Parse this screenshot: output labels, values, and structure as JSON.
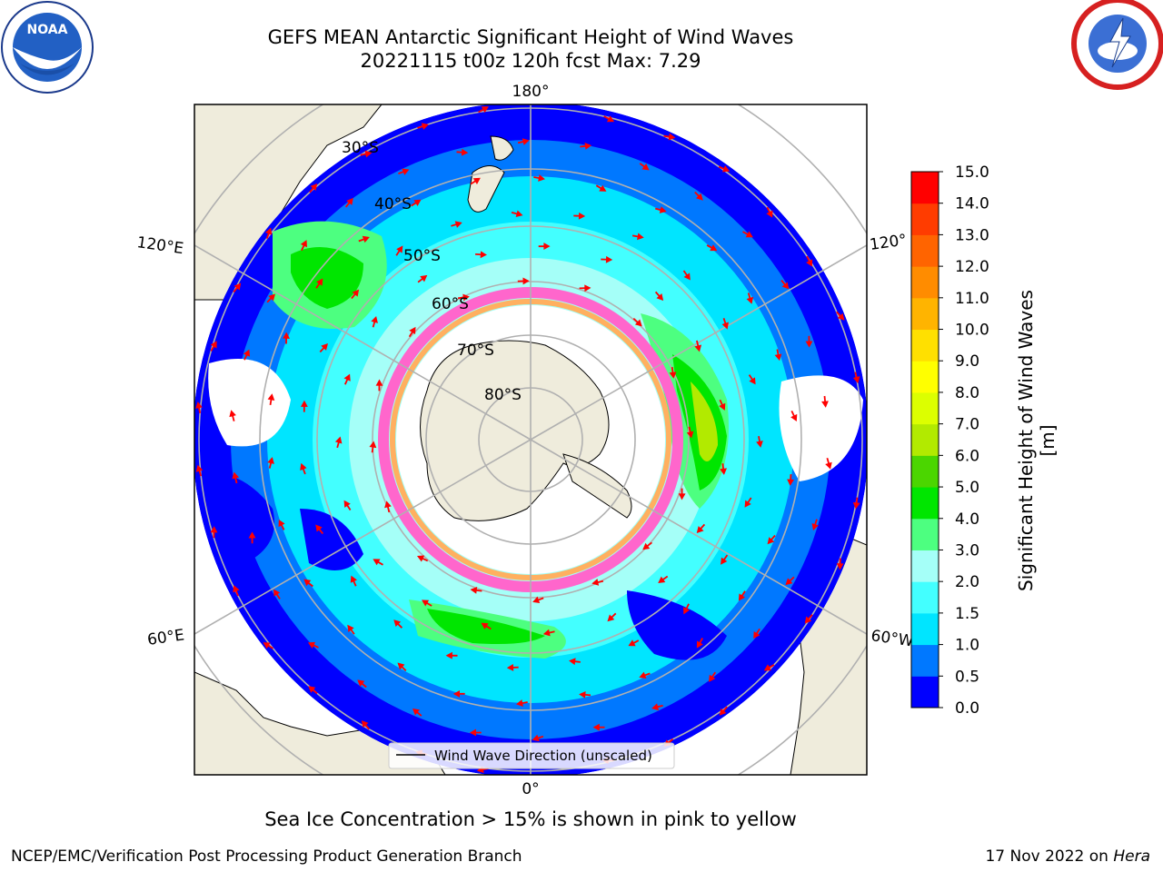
{
  "header": {
    "title_line1": "GEFS MEAN Antarctic Significant Height of Wind Waves",
    "title_line2": "20221115 t00z 120h fcst   Max: 7.29"
  },
  "logos": {
    "noaa": {
      "icon": "noaa-logo",
      "text": "NOAA"
    },
    "nws": {
      "icon": "nws-logo"
    }
  },
  "map": {
    "projection": "south-polar-stereographic",
    "colors": {
      "land": "#efecdc",
      "ice": "#ffffff",
      "frame": "#000000",
      "grid": "#b0b0b0",
      "arrow": "#ff0000"
    },
    "longitude_labels": {
      "top": "180°",
      "bottom": "0°",
      "upper_left": "120°E",
      "upper_right": "120°",
      "lower_left": "60°E",
      "lower_right": "60°W"
    },
    "latitude_labels": [
      "30°S",
      "40°S",
      "50°S",
      "60°S",
      "70°S",
      "80°S"
    ],
    "legend": {
      "label": "Wind Wave Direction (unscaled)"
    },
    "max_value": 7.29
  },
  "colorbar": {
    "label": "Significant Height of Wind Waves [m]",
    "ticks": [
      "0.0",
      "0.5",
      "1.0",
      "1.5",
      "2.0",
      "3.0",
      "4.0",
      "5.0",
      "6.0",
      "7.0",
      "8.0",
      "9.0",
      "10.0",
      "11.0",
      "12.0",
      "13.0",
      "14.0",
      "15.0"
    ],
    "colors": [
      "#0000ff",
      "#0078ff",
      "#00e5ff",
      "#43ffff",
      "#a5fff8",
      "#4dff80",
      "#00e600",
      "#4bd600",
      "#b2ea00",
      "#dcff00",
      "#ffff00",
      "#ffe000",
      "#ffb400",
      "#ff8c00",
      "#ff6400",
      "#ff3c00",
      "#ff0000"
    ]
  },
  "caption": "Sea Ice Concentration > 15% is shown in pink to yellow",
  "footer": {
    "left": "NCEP/EMC/Verification Post Processing Product Generation Branch",
    "date": "17 Nov 2022 on ",
    "host": "Hera"
  }
}
